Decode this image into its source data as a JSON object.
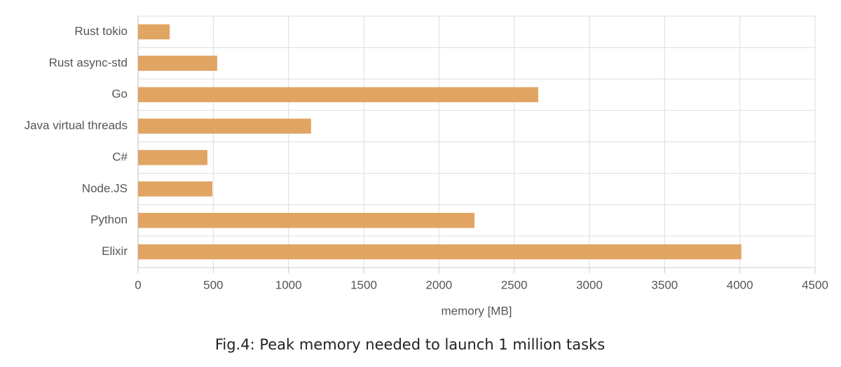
{
  "chart_data": {
    "type": "barh",
    "caption": "Fig.4: Peak memory needed to launch 1 million tasks",
    "x_label": "memory [MB]",
    "categories": [
      "Rust tokio",
      "Rust async-std",
      "Go",
      "Java virtual threads",
      "C#",
      "Node.JS",
      "Python",
      "Elixir"
    ],
    "values": [
      210,
      526,
      2660,
      1150,
      461,
      494,
      2236,
      4010
    ],
    "color": "#e1a563",
    "xlim": [
      0,
      4500
    ],
    "xticks": [
      0,
      500,
      1000,
      1500,
      2000,
      2500,
      3000,
      3500,
      4000,
      4500
    ],
    "grid": true
  }
}
